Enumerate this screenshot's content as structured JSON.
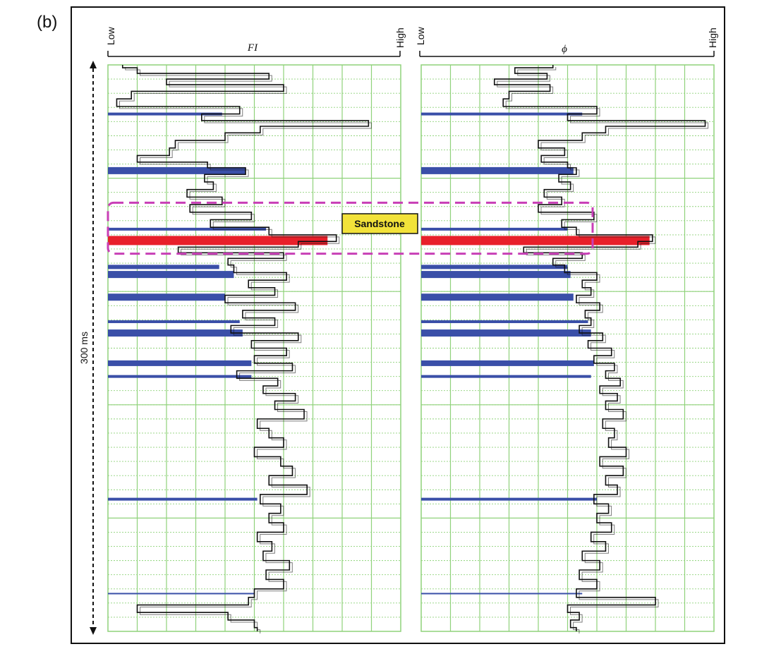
{
  "panel_label": "(b)",
  "colors": {
    "grid": "#8fd27a",
    "frame": "#111111",
    "log_line": "#111111",
    "marker_blue": "#3a4fa8",
    "marker_red": "#e8202a",
    "sand_box": "#c83fb6",
    "sand_fill": "#f2e23a"
  },
  "scale_bar": {
    "label": "300 ms"
  },
  "annotation": {
    "label": "Sandstone"
  },
  "chart_data": [
    {
      "type": "line",
      "title": "FI",
      "x_low_label": "Low",
      "x_high_label": "High",
      "ylabel": "300 ms",
      "xlim": [
        0,
        10
      ],
      "ylim": [
        0,
        300
      ],
      "y_inverted": true,
      "grid": true,
      "highlight_zone": {
        "label": "Sandstone",
        "y_range": [
          73,
          100
        ]
      },
      "markers": [
        {
          "y": 26,
          "value": 3.9,
          "color": "blue",
          "thickness": 4
        },
        {
          "y": 56,
          "value": 4.7,
          "color": "blue",
          "thickness": 10
        },
        {
          "y": 87,
          "value": 5.4,
          "color": "blue",
          "thickness": 4
        },
        {
          "y": 93,
          "value": 7.5,
          "color": "red",
          "thickness": 13
        },
        {
          "y": 107,
          "value": 3.8,
          "color": "blue",
          "thickness": 6
        },
        {
          "y": 111,
          "value": 4.3,
          "color": "blue",
          "thickness": 10
        },
        {
          "y": 123,
          "value": 4.0,
          "color": "blue",
          "thickness": 10
        },
        {
          "y": 136,
          "value": 4.5,
          "color": "blue",
          "thickness": 4
        },
        {
          "y": 142,
          "value": 4.6,
          "color": "blue",
          "thickness": 10
        },
        {
          "y": 158,
          "value": 4.9,
          "color": "blue",
          "thickness": 8
        },
        {
          "y": 165,
          "value": 4.9,
          "color": "blue",
          "thickness": 4
        },
        {
          "y": 230,
          "value": 5.1,
          "color": "blue",
          "thickness": 4
        },
        {
          "y": 280,
          "value": 5.0,
          "color": "blue",
          "thickness": 2
        }
      ],
      "series": [
        {
          "depth": [
            0,
            3,
            6,
            9,
            12,
            16,
            20,
            24,
            28,
            31,
            34,
            38,
            42,
            46,
            50,
            53,
            56,
            60,
            64,
            68,
            72,
            76,
            80,
            84,
            88,
            92,
            95,
            98,
            101,
            104,
            108,
            112,
            116,
            120,
            124,
            128,
            132,
            136,
            140,
            144,
            148,
            152,
            156,
            160,
            164,
            168,
            172,
            176,
            180,
            185,
            190,
            195,
            200,
            205,
            210,
            215,
            220,
            225,
            230,
            235,
            240,
            245,
            250,
            255,
            260,
            265,
            270,
            275,
            280,
            284,
            288,
            292,
            296,
            300
          ],
          "value": [
            0.5,
            1.0,
            5.5,
            2.0,
            6.0,
            0.8,
            0.3,
            4.5,
            3.2,
            8.9,
            5.2,
            4.0,
            2.3,
            2.1,
            1.0,
            3.4,
            4.7,
            3.3,
            3.6,
            2.7,
            3.9,
            2.8,
            4.9,
            3.5,
            5.5,
            7.8,
            6.5,
            2.4,
            6.0,
            4.1,
            4.3,
            6.1,
            4.8,
            5.7,
            4.0,
            6.4,
            4.6,
            5.7,
            4.2,
            6.5,
            4.9,
            6.1,
            5.0,
            6.3,
            4.4,
            5.8,
            5.3,
            6.4,
            5.7,
            6.7,
            5.1,
            5.5,
            6.0,
            5.0,
            5.9,
            6.3,
            5.5,
            6.8,
            5.2,
            5.9,
            5.5,
            6.0,
            5.1,
            5.6,
            5.3,
            6.2,
            5.4,
            6.0,
            5.0,
            4.8,
            1.0,
            4.1,
            5.0,
            5.1
          ]
        }
      ]
    },
    {
      "type": "line",
      "title": "ϕ",
      "x_low_label": "Low",
      "x_high_label": "High",
      "ylabel": "300 ms",
      "xlim": [
        0,
        10
      ],
      "ylim": [
        0,
        300
      ],
      "y_inverted": true,
      "grid": true,
      "highlight_zone": {
        "label": "Sandstone",
        "y_range": [
          73,
          100
        ]
      },
      "markers": [
        {
          "y": 26,
          "value": 5.5,
          "color": "blue",
          "thickness": 4
        },
        {
          "y": 56,
          "value": 5.2,
          "color": "blue",
          "thickness": 10
        },
        {
          "y": 87,
          "value": 5.0,
          "color": "blue",
          "thickness": 4
        },
        {
          "y": 93,
          "value": 7.8,
          "color": "red",
          "thickness": 13
        },
        {
          "y": 107,
          "value": 5.0,
          "color": "blue",
          "thickness": 6
        },
        {
          "y": 111,
          "value": 5.1,
          "color": "blue",
          "thickness": 10
        },
        {
          "y": 123,
          "value": 5.2,
          "color": "blue",
          "thickness": 10
        },
        {
          "y": 136,
          "value": 5.7,
          "color": "blue",
          "thickness": 4
        },
        {
          "y": 142,
          "value": 5.8,
          "color": "blue",
          "thickness": 10
        },
        {
          "y": 158,
          "value": 5.9,
          "color": "blue",
          "thickness": 8
        },
        {
          "y": 165,
          "value": 5.8,
          "color": "blue",
          "thickness": 4
        },
        {
          "y": 230,
          "value": 6.0,
          "color": "blue",
          "thickness": 4
        },
        {
          "y": 280,
          "value": 5.5,
          "color": "blue",
          "thickness": 2
        }
      ],
      "series": [
        {
          "depth": [
            0,
            3,
            6,
            9,
            12,
            16,
            20,
            24,
            28,
            31,
            34,
            38,
            42,
            46,
            50,
            53,
            56,
            60,
            64,
            68,
            72,
            76,
            80,
            84,
            88,
            92,
            95,
            98,
            101,
            104,
            108,
            112,
            116,
            120,
            124,
            128,
            132,
            136,
            140,
            144,
            148,
            152,
            156,
            160,
            164,
            168,
            172,
            176,
            180,
            185,
            190,
            195,
            200,
            205,
            210,
            215,
            220,
            225,
            230,
            235,
            240,
            245,
            250,
            255,
            260,
            265,
            270,
            275,
            280,
            284,
            288,
            292,
            296,
            300
          ],
          "value": [
            4.5,
            3.2,
            4.3,
            2.5,
            4.4,
            3.0,
            2.8,
            6.0,
            5.0,
            9.7,
            6.3,
            5.5,
            4.0,
            4.9,
            4.1,
            5.0,
            5.3,
            4.7,
            5.1,
            4.2,
            4.8,
            4.0,
            5.9,
            4.8,
            5.3,
            7.9,
            7.4,
            3.5,
            5.5,
            4.5,
            4.9,
            6.0,
            5.5,
            5.8,
            5.3,
            6.1,
            5.6,
            5.8,
            5.4,
            6.2,
            5.7,
            6.5,
            5.9,
            6.6,
            6.3,
            6.8,
            6.1,
            6.7,
            6.3,
            6.9,
            6.2,
            6.6,
            6.4,
            7.0,
            6.1,
            6.9,
            6.3,
            6.7,
            5.9,
            6.4,
            6.0,
            6.5,
            5.8,
            6.3,
            5.5,
            6.1,
            5.4,
            6.0,
            5.3,
            8.0,
            5.0,
            5.4,
            5.1,
            5.3
          ]
        }
      ]
    }
  ]
}
